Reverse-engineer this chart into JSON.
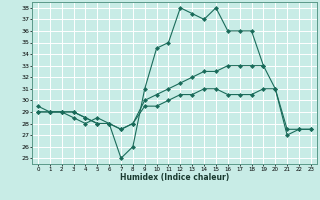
{
  "title": "",
  "xlabel": "Humidex (Indice chaleur)",
  "bg_color": "#c8ece6",
  "grid_color": "#ffffff",
  "line_color": "#1a6b5a",
  "xlim": [
    -0.5,
    23.5
  ],
  "ylim": [
    24.5,
    38.5
  ],
  "yticks": [
    25,
    26,
    27,
    28,
    29,
    30,
    31,
    32,
    33,
    34,
    35,
    36,
    37,
    38
  ],
  "xticks": [
    0,
    1,
    2,
    3,
    4,
    5,
    6,
    7,
    8,
    9,
    10,
    11,
    12,
    13,
    14,
    15,
    16,
    17,
    18,
    19,
    20,
    21,
    22,
    23
  ],
  "series": [
    {
      "x": [
        0,
        1,
        2,
        3,
        4,
        5,
        6,
        7,
        8,
        9,
        10,
        11,
        12,
        13,
        14,
        15,
        16,
        17,
        18,
        19
      ],
      "y": [
        29.0,
        29.0,
        29.0,
        28.5,
        28.0,
        28.5,
        28.0,
        25.0,
        26.0,
        31.0,
        34.5,
        35.0,
        38.0,
        37.5,
        37.0,
        38.0,
        36.0,
        36.0,
        36.0,
        33.0
      ]
    },
    {
      "x": [
        0,
        1,
        2,
        3,
        4,
        5,
        6,
        7,
        8,
        9,
        10,
        11,
        12,
        13,
        14,
        15,
        16,
        17,
        18,
        19,
        20,
        21,
        22,
        23
      ],
      "y": [
        29.0,
        29.0,
        29.0,
        29.0,
        28.5,
        28.0,
        28.0,
        27.5,
        28.0,
        30.0,
        30.5,
        31.0,
        31.5,
        32.0,
        32.5,
        32.5,
        33.0,
        33.0,
        33.0,
        33.0,
        31.0,
        27.5,
        27.5,
        27.5
      ]
    },
    {
      "x": [
        0,
        1,
        2,
        3,
        4,
        5,
        6,
        7,
        8,
        9,
        10,
        11,
        12,
        13,
        14,
        15,
        16,
        17,
        18,
        19,
        20,
        21,
        22,
        23
      ],
      "y": [
        29.5,
        29.0,
        29.0,
        29.0,
        28.5,
        28.0,
        28.0,
        27.5,
        28.0,
        29.5,
        29.5,
        30.0,
        30.5,
        30.5,
        31.0,
        31.0,
        30.5,
        30.5,
        30.5,
        31.0,
        31.0,
        27.0,
        27.5,
        27.5
      ]
    }
  ]
}
